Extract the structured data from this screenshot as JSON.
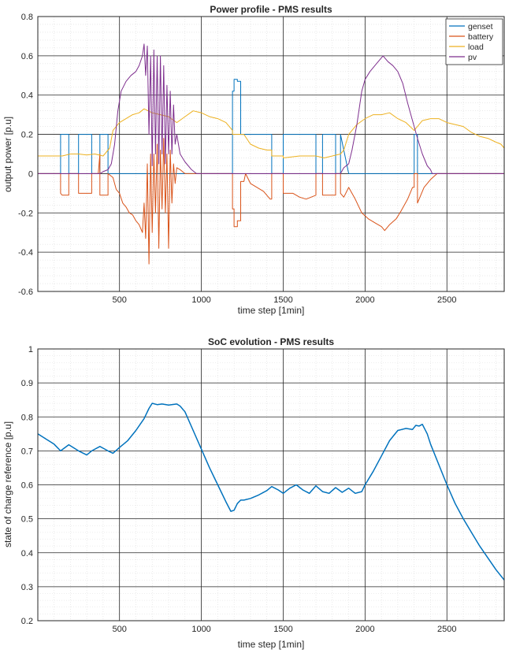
{
  "chart_data": [
    {
      "type": "line",
      "title": "Power profile - PMS results",
      "xlabel": "time step [1min]",
      "ylabel": "output power [p.u]",
      "xlim": [
        1,
        2850
      ],
      "ylim": [
        -0.6,
        0.8
      ],
      "xticks": [
        500,
        1000,
        1500,
        2000,
        2500
      ],
      "yticks": [
        -0.6,
        -0.4,
        -0.2,
        0,
        0.2,
        0.4,
        0.6,
        0.8
      ],
      "xtick_labels": [
        "500",
        "1000",
        "1500",
        "2000",
        "2500"
      ],
      "ytick_labels": [
        "-0.6",
        "-0.4",
        "-0.2",
        "0",
        "0.2",
        "0.4",
        "0.6",
        "0.8"
      ],
      "grid": true,
      "minor_grid": true,
      "legend_position": "top-right",
      "series": [
        {
          "name": "genset",
          "color": "#0072BD",
          "x": [
            1,
            140,
            140,
            190,
            190,
            250,
            250,
            330,
            330,
            380,
            380,
            430,
            430,
            450,
            450,
            1190,
            1190,
            1200,
            1200,
            1220,
            1220,
            1240,
            1240,
            1260,
            1260,
            1430,
            1430,
            1500,
            1500,
            1700,
            1700,
            1740,
            1740,
            1820,
            1820,
            1850,
            1850,
            1900,
            2300,
            2300,
            2320,
            2320,
            2850
          ],
          "y": [
            0,
            0,
            0.2,
            0.2,
            0,
            0,
            0.2,
            0.2,
            0,
            0,
            0.2,
            0.2,
            0,
            0,
            0,
            0,
            0.42,
            0.42,
            0.48,
            0.48,
            0.47,
            0.47,
            0.2,
            0.2,
            0.2,
            0.2,
            0,
            0,
            0.2,
            0.2,
            0,
            0,
            0.2,
            0.2,
            0,
            0,
            0.2,
            0,
            0,
            0.2,
            0.2,
            0,
            0
          ]
        },
        {
          "name": "battery",
          "color": "#D95319",
          "x": [
            1,
            140,
            140,
            150,
            190,
            190,
            250,
            250,
            330,
            330,
            370,
            380,
            380,
            430,
            430,
            460,
            480,
            500,
            520,
            540,
            560,
            580,
            600,
            620,
            640,
            650,
            660,
            670,
            680,
            690,
            700,
            710,
            720,
            730,
            740,
            750,
            760,
            770,
            780,
            790,
            800,
            810,
            820,
            830,
            840,
            850,
            870,
            900,
            940,
            970,
            1000,
            1050,
            1100,
            1150,
            1190,
            1190,
            1200,
            1200,
            1220,
            1220,
            1240,
            1240,
            1260,
            1270,
            1300,
            1340,
            1380,
            1420,
            1430,
            1430,
            1500,
            1500,
            1560,
            1600,
            1640,
            1700,
            1700,
            1740,
            1740,
            1820,
            1820,
            1850,
            1850,
            1870,
            1900,
            1940,
            1980,
            2020,
            2060,
            2100,
            2120,
            2150,
            2190,
            2220,
            2260,
            2290,
            2300,
            2300,
            2320,
            2320,
            2360,
            2400,
            2440,
            2500,
            2600,
            2700,
            2800,
            2850
          ],
          "y": [
            0,
            0,
            -0.1,
            -0.11,
            -0.11,
            0,
            0,
            -0.1,
            -0.1,
            0,
            0,
            0.1,
            -0.11,
            -0.11,
            0,
            -0.02,
            -0.08,
            -0.1,
            -0.15,
            -0.17,
            -0.2,
            -0.21,
            -0.24,
            -0.26,
            -0.3,
            -0.15,
            -0.33,
            0.05,
            -0.46,
            0.1,
            -0.3,
            0.1,
            -0.2,
            0.15,
            -0.38,
            0.12,
            -0.18,
            0.18,
            -0.2,
            0.1,
            -0.38,
            0.12,
            -0.15,
            0.05,
            -0.05,
            0.03,
            0.02,
            0,
            0,
            0,
            0,
            0,
            0,
            0,
            0,
            -0.18,
            -0.18,
            -0.27,
            -0.27,
            -0.24,
            -0.24,
            -0.04,
            -0.04,
            0.0,
            -0.05,
            -0.07,
            -0.09,
            -0.13,
            -0.13,
            0,
            0,
            -0.1,
            -0.1,
            -0.12,
            -0.13,
            -0.11,
            0,
            0,
            -0.11,
            -0.11,
            0,
            0,
            -0.1,
            -0.12,
            -0.07,
            -0.13,
            -0.2,
            -0.23,
            -0.25,
            -0.27,
            -0.29,
            -0.26,
            -0.23,
            -0.19,
            -0.13,
            -0.07,
            -0.07,
            0,
            0,
            -0.15,
            -0.07,
            -0.03,
            0,
            0,
            0,
            0,
            0,
            0
          ]
        },
        {
          "name": "load",
          "color": "#EDB120",
          "x": [
            1,
            50,
            100,
            150,
            200,
            250,
            300,
            350,
            400,
            440,
            460,
            480,
            500,
            540,
            580,
            620,
            650,
            700,
            750,
            800,
            850,
            900,
            950,
            1000,
            1050,
            1100,
            1150,
            1190,
            1190,
            1200,
            1200,
            1260,
            1260,
            1300,
            1350,
            1400,
            1430,
            1430,
            1500,
            1500,
            1600,
            1700,
            1750,
            1800,
            1850,
            1870,
            1900,
            1950,
            2000,
            2050,
            2100,
            2150,
            2200,
            2250,
            2300,
            2350,
            2400,
            2450,
            2500,
            2550,
            2600,
            2650,
            2700,
            2750,
            2800,
            2830,
            2850
          ],
          "y": [
            0.09,
            0.09,
            0.09,
            0.09,
            0.1,
            0.1,
            0.095,
            0.1,
            0.09,
            0.13,
            0.22,
            0.24,
            0.26,
            0.28,
            0.3,
            0.31,
            0.33,
            0.31,
            0.3,
            0.29,
            0.26,
            0.29,
            0.32,
            0.31,
            0.29,
            0.28,
            0.26,
            0.22,
            0.2,
            0.2,
            0.2,
            0.2,
            0.2,
            0.15,
            0.13,
            0.12,
            0.12,
            0.09,
            0.09,
            0.08,
            0.09,
            0.09,
            0.08,
            0.09,
            0.1,
            0.12,
            0.2,
            0.25,
            0.28,
            0.3,
            0.3,
            0.31,
            0.28,
            0.26,
            0.22,
            0.27,
            0.28,
            0.28,
            0.26,
            0.25,
            0.24,
            0.21,
            0.19,
            0.18,
            0.16,
            0.15,
            0.13
          ]
        },
        {
          "name": "pv",
          "color": "#7E2F8E",
          "x": [
            1,
            300,
            380,
            400,
            430,
            450,
            470,
            490,
            510,
            540,
            570,
            600,
            620,
            640,
            650,
            660,
            670,
            680,
            690,
            700,
            710,
            720,
            730,
            740,
            750,
            760,
            770,
            780,
            790,
            800,
            810,
            820,
            830,
            840,
            850,
            870,
            900,
            940,
            970,
            1000,
            1850,
            1870,
            1900,
            1920,
            1950,
            1980,
            2000,
            2030,
            2060,
            2090,
            2110,
            2120,
            2140,
            2170,
            2200,
            2230,
            2260,
            2290,
            2320,
            2350,
            2380,
            2400,
            2410,
            2850
          ],
          "y": [
            0,
            0,
            0,
            0.01,
            0.02,
            0.05,
            0.15,
            0.32,
            0.42,
            0.47,
            0.5,
            0.52,
            0.55,
            0.6,
            0.66,
            0.5,
            0.65,
            0.2,
            0.6,
            0.04,
            0.63,
            0.1,
            0.6,
            0.05,
            0.6,
            0.1,
            0.55,
            0.05,
            0.45,
            0.1,
            0.42,
            0.1,
            0.35,
            0.15,
            0.2,
            0.1,
            0.06,
            0.02,
            0.0,
            0,
            0,
            0.03,
            0.05,
            0.12,
            0.25,
            0.42,
            0.48,
            0.52,
            0.55,
            0.58,
            0.6,
            0.59,
            0.57,
            0.55,
            0.52,
            0.46,
            0.36,
            0.27,
            0.18,
            0.1,
            0.04,
            0.02,
            0,
            0
          ]
        }
      ]
    },
    {
      "type": "line",
      "title": "SoC evolution - PMS results",
      "xlabel": "time step [1min]",
      "ylabel": "state of charge reference [p.u]",
      "xlim": [
        1,
        2850
      ],
      "ylim": [
        0.2,
        1
      ],
      "xticks": [
        500,
        1000,
        1500,
        2000,
        2500
      ],
      "yticks": [
        0.2,
        0.3,
        0.4,
        0.5,
        0.6,
        0.7,
        0.8,
        0.9,
        1
      ],
      "xtick_labels": [
        "500",
        "1000",
        "1500",
        "2000",
        "2500"
      ],
      "ytick_labels": [
        "0.2",
        "0.3",
        "0.4",
        "0.5",
        "0.6",
        "0.7",
        "0.8",
        "0.9",
        "1"
      ],
      "grid": true,
      "minor_grid": true,
      "series": [
        {
          "color": "#0072BD",
          "x": [
            1,
            50,
            100,
            140,
            190,
            250,
            300,
            330,
            380,
            430,
            460,
            500,
            550,
            600,
            650,
            680,
            700,
            730,
            760,
            800,
            850,
            870,
            900,
            950,
            1000,
            1050,
            1100,
            1150,
            1180,
            1200,
            1220,
            1240,
            1260,
            1300,
            1350,
            1400,
            1430,
            1470,
            1500,
            1540,
            1580,
            1620,
            1660,
            1700,
            1740,
            1780,
            1820,
            1860,
            1900,
            1940,
            1980,
            2000,
            2050,
            2100,
            2150,
            2200,
            2250,
            2290,
            2310,
            2330,
            2350,
            2380,
            2400,
            2450,
            2500,
            2550,
            2600,
            2650,
            2700,
            2750,
            2800,
            2850
          ],
          "y": [
            0.75,
            0.735,
            0.72,
            0.7,
            0.718,
            0.7,
            0.688,
            0.7,
            0.713,
            0.7,
            0.693,
            0.71,
            0.73,
            0.76,
            0.795,
            0.825,
            0.84,
            0.836,
            0.838,
            0.835,
            0.838,
            0.832,
            0.815,
            0.76,
            0.705,
            0.65,
            0.6,
            0.55,
            0.522,
            0.525,
            0.545,
            0.555,
            0.555,
            0.56,
            0.57,
            0.583,
            0.595,
            0.585,
            0.575,
            0.59,
            0.6,
            0.585,
            0.575,
            0.597,
            0.58,
            0.575,
            0.592,
            0.578,
            0.59,
            0.575,
            0.58,
            0.6,
            0.64,
            0.685,
            0.73,
            0.76,
            0.766,
            0.763,
            0.775,
            0.773,
            0.778,
            0.75,
            0.72,
            0.66,
            0.6,
            0.545,
            0.5,
            0.46,
            0.42,
            0.385,
            0.35,
            0.32
          ]
        }
      ]
    }
  ]
}
